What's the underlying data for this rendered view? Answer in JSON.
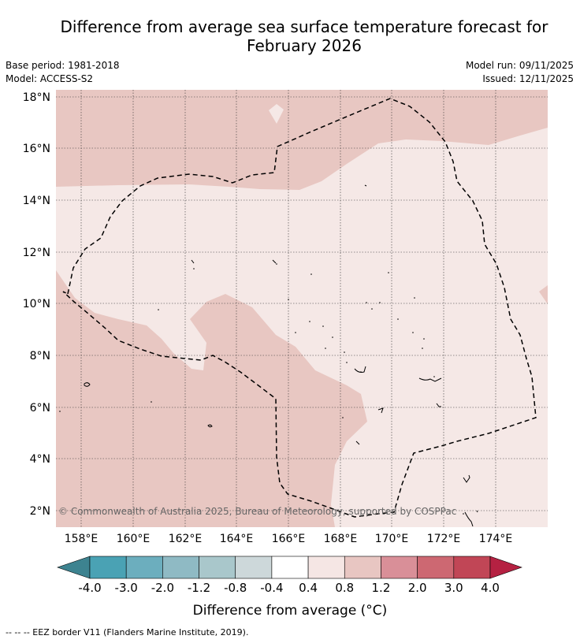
{
  "title_line1": "Difference from average sea surface temperature forecast for",
  "title_line2": "February 2026",
  "base_period": "Base period: 1981-2018",
  "model": "Model: ACCESS-S2",
  "model_run": "Model run: 09/11/2025",
  "issued": "Issued: 12/11/2025",
  "copyright": "© Commonwealth of Australia 2025, Bureau of Meteorology, supported by COSPPac",
  "lon_ticks": [
    "158°E",
    "160°E",
    "162°E",
    "164°E",
    "166°E",
    "168°E",
    "170°E",
    "172°E",
    "174°E"
  ],
  "lat_ticks": [
    "18°N",
    "16°N",
    "14°N",
    "12°N",
    "10°N",
    "8°N",
    "6°N",
    "4°N",
    "2°N"
  ],
  "colorbar": {
    "labels": [
      "-4.0",
      "-3.0",
      "-2.0",
      "-1.2",
      "-0.8",
      "-0.4",
      "0.4",
      "0.8",
      "1.2",
      "2.0",
      "3.0",
      "4.0"
    ],
    "colors": [
      "#3d8390",
      "#4aa2b4",
      "#6caebe",
      "#8fbac4",
      "#a9c7cb",
      "#cdd8da",
      "#ffffff",
      "#f5e6e4",
      "#e8c6c2",
      "#d98f98",
      "#cd6872",
      "#c14656",
      "#b52142"
    ],
    "title": "Difference from average (°C)"
  },
  "footnote": "--  --  -- EEZ border V11 (Flanders Marine Institute, 2019).",
  "colors": {
    "band_04_08": "#f5e8e6",
    "band_08_12": "#e8c7c2",
    "eez": "#000000"
  }
}
